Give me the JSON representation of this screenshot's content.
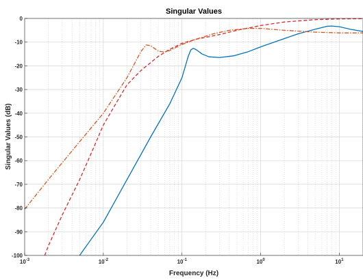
{
  "chart_data": {
    "type": "line",
    "title": "Singular Values",
    "xlabel": "Frequency (Hz)",
    "ylabel": "Singular Values (dB)",
    "xscale": "log",
    "xlim": [
      0.001,
      20
    ],
    "ylim": [
      -100,
      0
    ],
    "grid": "on (major solid, minor dotted on x)",
    "x_ticks": [
      {
        "base": "10",
        "exp": "-3",
        "value": 0.001
      },
      {
        "base": "10",
        "exp": "-2",
        "value": 0.01
      },
      {
        "base": "10",
        "exp": "-1",
        "value": 0.1
      },
      {
        "base": "10",
        "exp": "0",
        "value": 1
      },
      {
        "base": "10",
        "exp": "1",
        "value": 10
      }
    ],
    "y_ticks": [
      {
        "label": "0",
        "value": 0
      },
      {
        "label": "-10",
        "value": -10
      },
      {
        "label": "-20",
        "value": -20
      },
      {
        "label": "-30",
        "value": -30
      },
      {
        "label": "-40",
        "value": -40
      },
      {
        "label": "-50",
        "value": -50
      },
      {
        "label": "-60",
        "value": -60
      },
      {
        "label": "-70",
        "value": -70
      },
      {
        "label": "-80",
        "value": -80
      },
      {
        "label": "-90",
        "value": -90
      },
      {
        "label": "-100",
        "value": -100
      }
    ],
    "series": [
      {
        "style": "solid",
        "color": "#0072bd",
        "points": [
          [
            0.005,
            -100
          ],
          [
            0.01,
            -86
          ],
          [
            0.02,
            -68
          ],
          [
            0.04,
            -50
          ],
          [
            0.07,
            -36
          ],
          [
            0.1,
            -25
          ],
          [
            0.12,
            -16
          ],
          [
            0.13,
            -13.2
          ],
          [
            0.14,
            -12.6
          ],
          [
            0.155,
            -13.4
          ],
          [
            0.18,
            -15
          ],
          [
            0.22,
            -16.2
          ],
          [
            0.3,
            -16.5
          ],
          [
            0.45,
            -15.8
          ],
          [
            0.7,
            -14
          ],
          [
            1,
            -12
          ],
          [
            2,
            -8.5
          ],
          [
            3,
            -6.5
          ],
          [
            5,
            -4.5
          ],
          [
            7,
            -3.3
          ],
          [
            8,
            -3.2
          ],
          [
            10,
            -3.5
          ],
          [
            14,
            -4.6
          ],
          [
            20,
            -5.5
          ]
        ]
      },
      {
        "style": "dashed",
        "color": "#d62728",
        "points": [
          [
            0.0018,
            -100
          ],
          [
            0.002,
            -96
          ],
          [
            0.003,
            -83
          ],
          [
            0.005,
            -68
          ],
          [
            0.007,
            -57
          ],
          [
            0.01,
            -45
          ],
          [
            0.015,
            -35
          ],
          [
            0.02,
            -28
          ],
          [
            0.03,
            -22
          ],
          [
            0.05,
            -16
          ],
          [
            0.07,
            -13
          ],
          [
            0.1,
            -10.5
          ],
          [
            0.15,
            -8.8
          ],
          [
            0.2,
            -8
          ],
          [
            0.3,
            -6.8
          ],
          [
            0.5,
            -5
          ],
          [
            1,
            -3
          ],
          [
            2,
            -1.5
          ],
          [
            5,
            -0.5
          ],
          [
            10,
            -0.2
          ],
          [
            20,
            -0.1
          ]
        ]
      },
      {
        "style": "dashdot",
        "color": "#d95319",
        "points": [
          [
            0.001,
            -80.5
          ],
          [
            0.002,
            -68
          ],
          [
            0.005,
            -52
          ],
          [
            0.01,
            -40
          ],
          [
            0.02,
            -25
          ],
          [
            0.03,
            -14
          ],
          [
            0.035,
            -11.2
          ],
          [
            0.04,
            -11.5
          ],
          [
            0.05,
            -13.8
          ],
          [
            0.06,
            -14.2
          ],
          [
            0.07,
            -13.5
          ],
          [
            0.1,
            -11
          ],
          [
            0.15,
            -8.8
          ],
          [
            0.25,
            -6.5
          ],
          [
            0.4,
            -5
          ],
          [
            0.7,
            -4.2
          ],
          [
            1,
            -4.2
          ],
          [
            2,
            -5
          ],
          [
            5,
            -5.8
          ],
          [
            10,
            -6.1
          ],
          [
            20,
            -6.1
          ]
        ]
      }
    ]
  }
}
